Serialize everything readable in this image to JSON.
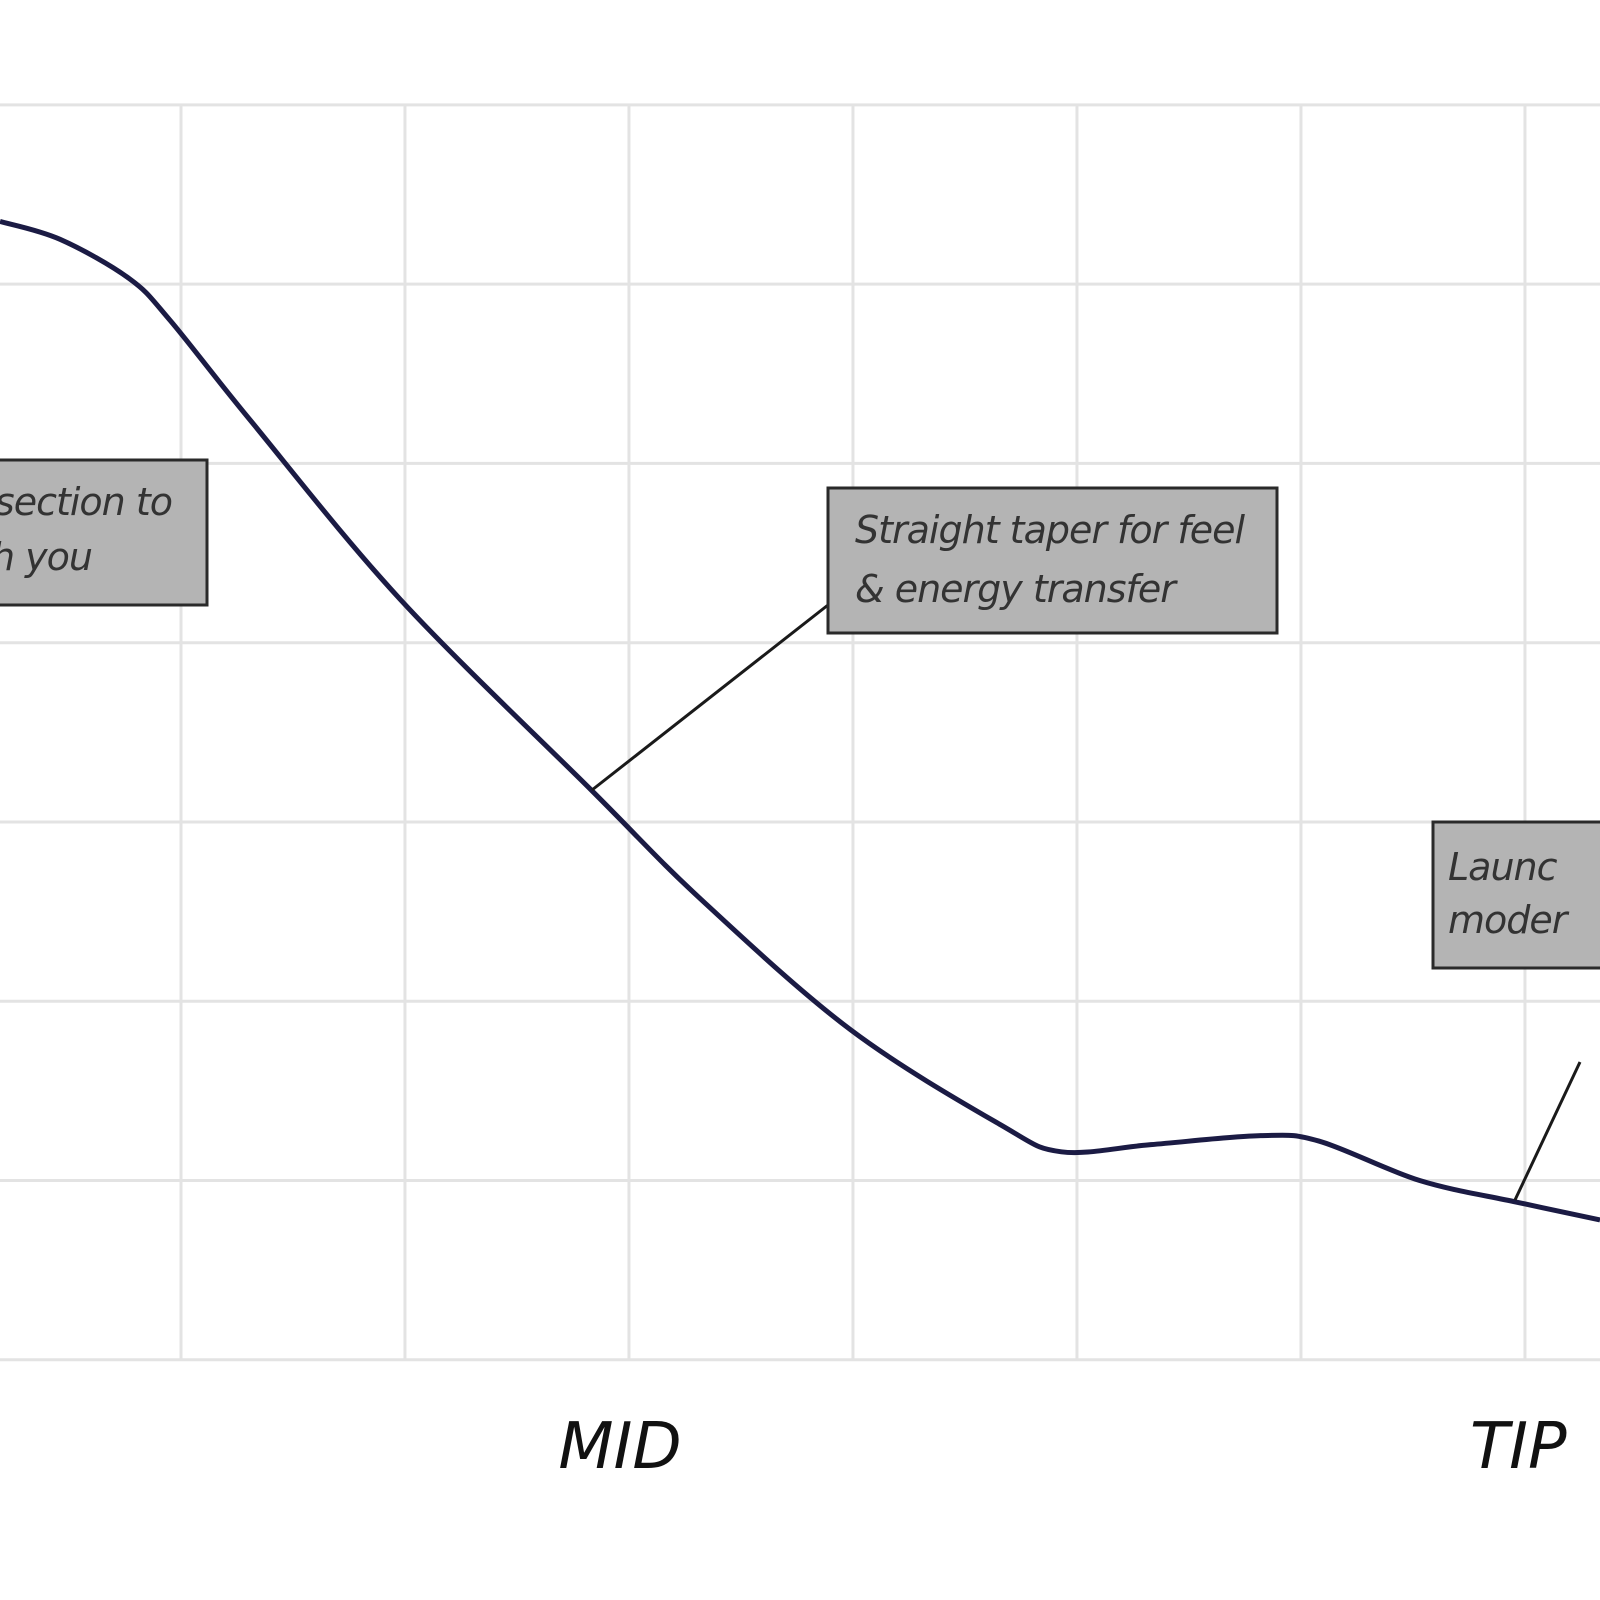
{
  "chart_data": {
    "type": "line",
    "x": [
      0.192,
      0.46,
      0.77,
      0.95,
      1.31,
      1.98,
      2.83,
      3.32,
      3.99,
      4.66,
      4.93,
      5.33,
      5.82,
      6.08,
      6.53,
      6.96,
      7.335
    ],
    "values": [
      6.35,
      6.25,
      6.03,
      5.8,
      5.24,
      4.24,
      3.18,
      2.57,
      1.84,
      1.31,
      1.16,
      1.2,
      1.25,
      1.22,
      1.0,
      0.88,
      0.78
    ],
    "color": "#1b1b44",
    "xlim": [
      0.192,
      7.335
    ],
    "ylim": [
      -1.34,
      7.585
    ],
    "xticks": [
      1,
      2,
      3,
      4,
      5,
      6,
      7
    ],
    "yticks": [
      0,
      1,
      2,
      3,
      4,
      5,
      6,
      7
    ],
    "grid": true,
    "annotations": [
      {
        "lines": [
          "section to",
          "h you"
        ]
      },
      {
        "lines": [
          "Straight taper for feel",
          "& energy transfer"
        ]
      },
      {
        "lines": [
          "Launc",
          "moder"
        ]
      }
    ],
    "section_labels": [
      "MID",
      "TIP"
    ]
  }
}
